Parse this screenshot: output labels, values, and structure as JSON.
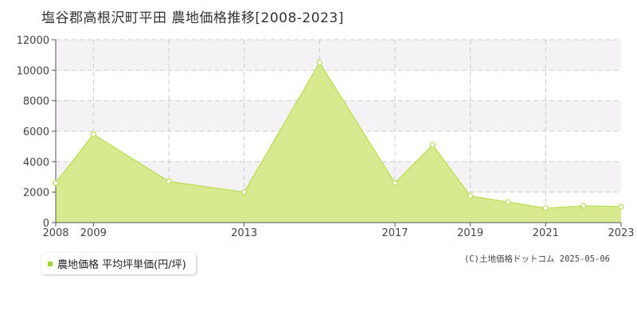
{
  "title": "塩谷郡高根沢町平田 農地価格推移[2008-2023]",
  "legend_label": "農地価格 平均坪単価(円/坪)",
  "copyright": "(C)土地価格ドットコム 2025-05-06",
  "colors": {
    "fill": "#d7ea8f",
    "line": "#b9dc50",
    "marker_stroke": "#b9dc50",
    "legend_swatch": "#a8d22e",
    "grid": "#cccccc",
    "band": "#f4f2f4"
  },
  "chart_data": {
    "type": "area",
    "title": "塩谷郡高根沢町平田 農地価格推移[2008-2023]",
    "xlabel": "",
    "ylabel": "",
    "x": [
      2008,
      2009,
      2011,
      2013,
      2015,
      2017,
      2018,
      2019,
      2020,
      2021,
      2022,
      2023
    ],
    "series": [
      {
        "name": "農地価格 平均坪単価(円/坪)",
        "values": [
          2600,
          5800,
          2700,
          2000,
          10500,
          2600,
          5100,
          1750,
          1350,
          950,
          1100,
          1050
        ]
      }
    ],
    "xlim": [
      2008,
      2023
    ],
    "ylim": [
      0,
      12000
    ],
    "x_ticks": [
      2008,
      2009,
      2013,
      2017,
      2019,
      2021,
      2023
    ],
    "x_gridlines": [
      2009,
      2011,
      2013,
      2015,
      2017,
      2019,
      2021
    ],
    "y_ticks": [
      0,
      2000,
      4000,
      6000,
      8000,
      10000,
      12000
    ],
    "grid": true,
    "legend_position": "bottom-left"
  }
}
